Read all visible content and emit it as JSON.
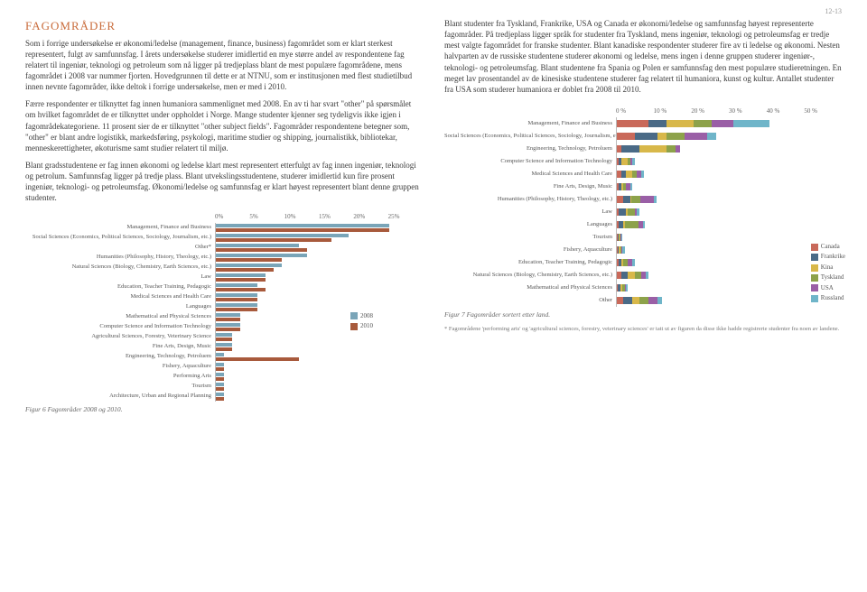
{
  "page_number": "12-13",
  "heading": "FAGOMRÅDER",
  "left_paragraphs": [
    "Som i forrige undersøkelse er økonomi/ledelse (management, finance, business) fagområdet som er klart sterkest representert, fulgt av samfunnsfag. I årets undersøkelse studerer imidlertid en mye større andel av respondentene fag relatert til ingeniør, teknologi og petroleum som nå ligger på tredjeplass blant de mest populære fagområdene, mens fagområdet i 2008 var nummer fjorten. Hovedgrunnen til dette er at NTNU, som er institusjonen med flest studietilbud innen nevnte fagområder, ikke deltok i forrige undersøkelse, men er med i 2010.",
    "Færre respondenter er tilknyttet fag innen humaniora sammenlignet med 2008. En av ti har svart \"other\" på spørsmålet om hvilket fagområdet de er tilknyttet under oppholdet i Norge. Mange studenter kjenner seg tydeligvis ikke igjen i fagområdekategoriene. 11 prosent sier de er tilknyttet \"other subject fields\". Fagområder respondentene betegner som, \"other\" er blant andre logistikk, markedsføring, psykologi, maritime studier og shipping, journalistikk, bibliotekar, menneskerettigheter, økoturisme samt studier relatert til miljø.",
    "Blant gradsstudentene er fag innen økonomi og ledelse klart mest representert etterfulgt av fag innen ingeniør, teknologi og petrolum. Samfunnsfag ligger på tredje plass. Blant utvekslingsstudentene, studerer imidlertid kun fire prosent ingeniør, teknologi- og petroleumsfag. Økonomi/ledelse og samfunnsfag er klart høyest representert blant denne gruppen studenter."
  ],
  "right_paragraphs": [
    "Blant studenter fra Tyskland, Frankrike, USA og Canada er økonomi/ledelse og samfunnsfag høyest representerte fagområder. På tredjeplass ligger språk for studenter fra Tyskland, mens ingeniør, teknologi og petroleumsfag er tredje mest valgte fagområdet for franske studenter. Blant kanadiske respondenter studerer fire av ti ledelse og økonomi. Nesten halvparten av de russiske studentene studerer økonomi og ledelse, mens ingen i denne gruppen studerer ingeniør-, teknologi- og petroleumsfag. Blant studentene fra Spania og Polen er samfunnsfag den mest populære studieretningen. En meget lav prosentandel av de kinesiske studentene studerer fag relatert til humaniora, kunst og kultur. Antallet studenter fra USA som studerer humaniora er doblet fra 2008 til 2010."
  ],
  "chart1": {
    "type": "bar",
    "axis_ticks": [
      "0%",
      "5%",
      "10%",
      "15%",
      "20%",
      "25%"
    ],
    "xmax": 25,
    "colors": {
      "y2008": "#7aa5b8",
      "y2010": "#a85a3c"
    },
    "legend": [
      {
        "label": "2008",
        "color": "#7aa5b8"
      },
      {
        "label": "2010",
        "color": "#a85a3c"
      }
    ],
    "rows": [
      {
        "label": "Management, Finance and Business",
        "y2008": 21,
        "y2010": 21
      },
      {
        "label": "Social Sciences (Economics, Political Sciences, Sociology, Journalism, etc.)",
        "y2008": 16,
        "y2010": 14
      },
      {
        "label": "Other*",
        "y2008": 10,
        "y2010": 11
      },
      {
        "label": "Humanities (Philosophy, History, Theology, etc.)",
        "y2008": 11,
        "y2010": 8
      },
      {
        "label": "Natural Sciences (Biology, Chemistry, Earth Sciences, etc.)",
        "y2008": 8,
        "y2010": 7
      },
      {
        "label": "Law",
        "y2008": 6,
        "y2010": 6
      },
      {
        "label": "Education, Teacher Training, Pedagogic",
        "y2008": 5,
        "y2010": 6
      },
      {
        "label": "Medical Sciences and Health Care",
        "y2008": 5,
        "y2010": 5
      },
      {
        "label": "Languages",
        "y2008": 5,
        "y2010": 5
      },
      {
        "label": "Mathematical and Physical Sciences",
        "y2008": 3,
        "y2010": 3
      },
      {
        "label": "Computer Science and Information Technology",
        "y2008": 3,
        "y2010": 3
      },
      {
        "label": "Agricultural Sciences, Forestry, Veterinary Science",
        "y2008": 2,
        "y2010": 2
      },
      {
        "label": "Fine Arts, Design, Music",
        "y2008": 2,
        "y2010": 2
      },
      {
        "label": "Engineering, Technology, Petroluem",
        "y2008": 1,
        "y2010": 10
      },
      {
        "label": "Fishery, Aquaculture",
        "y2008": 1,
        "y2010": 1
      },
      {
        "label": "Performing Arts",
        "y2008": 1,
        "y2010": 1
      },
      {
        "label": "Tourism",
        "y2008": 1,
        "y2010": 1
      },
      {
        "label": "Architecture, Urban and Regional Planning",
        "y2008": 1,
        "y2010": 1
      }
    ],
    "caption": "Figur 6 Fagområder 2008 og 2010."
  },
  "chart2": {
    "type": "stacked-bar",
    "axis_ticks": [
      "0 %",
      "10 %",
      "20 %",
      "30 %",
      "40 %",
      "50 %"
    ],
    "xmax": 50,
    "countries": [
      {
        "name": "Canada",
        "color": "#c9695a"
      },
      {
        "name": "Frankrike",
        "color": "#4a6a86"
      },
      {
        "name": "Kina",
        "color": "#d8b84a"
      },
      {
        "name": "Tyskland",
        "color": "#8da24a"
      },
      {
        "name": "USA",
        "color": "#9a5fa6"
      },
      {
        "name": "Russland",
        "color": "#6fb5c9"
      }
    ],
    "rows": [
      {
        "label": "Management, Finance and Business",
        "segs": [
          7,
          4,
          6,
          4,
          5,
          8
        ]
      },
      {
        "label": "Social Sciences (Economics, Political Sciences, Sociology, Journalism, etc.)",
        "segs": [
          4,
          5,
          2,
          4,
          5,
          2
        ]
      },
      {
        "label": "Engineering, Technology, Petroluem",
        "segs": [
          1,
          4,
          6,
          2,
          1,
          0
        ]
      },
      {
        "label": "Computer Science and Information Technology",
        "segs": [
          0.5,
          0.5,
          1.5,
          0.5,
          0.5,
          0.5
        ]
      },
      {
        "label": "Medical Sciences and Health Care",
        "segs": [
          1,
          1,
          1.5,
          1,
          1,
          0.5
        ]
      },
      {
        "label": "Fine Arts, Design, Music",
        "segs": [
          0.5,
          0.5,
          0.5,
          0.5,
          1,
          0.5
        ]
      },
      {
        "label": "Humanities (Philosophy, History, Theology, etc.)",
        "segs": [
          1.5,
          1.5,
          0.3,
          2,
          3,
          0.5
        ]
      },
      {
        "label": "Law",
        "segs": [
          0.5,
          1.5,
          0.5,
          1.5,
          0.5,
          0.5
        ]
      },
      {
        "label": "Languages",
        "segs": [
          0.5,
          1,
          0.3,
          3,
          1,
          0.5
        ]
      },
      {
        "label": "Tourism",
        "segs": [
          0.2,
          0.2,
          0.2,
          0.2,
          0.2,
          0.2
        ]
      },
      {
        "label": "Fishery, Aquaculture",
        "segs": [
          0.2,
          0.2,
          0.5,
          0.2,
          0.2,
          0.5
        ]
      },
      {
        "label": "Education, Teacher Training, Pedagogic",
        "segs": [
          0.5,
          0.5,
          0.5,
          1,
          1,
          0.5
        ]
      },
      {
        "label": "Natural Sciences (Biology, Chemistry, Earth Sciences, etc.)",
        "segs": [
          1,
          1.5,
          1.5,
          1.5,
          1,
          0.5
        ]
      },
      {
        "label": "Mathematical and Physical Sciences",
        "segs": [
          0.3,
          0.5,
          0.5,
          0.5,
          0.3,
          0.3
        ]
      },
      {
        "label": "Other",
        "segs": [
          1.5,
          2,
          1.5,
          2,
          2,
          1
        ]
      }
    ],
    "caption": "Figur 7 Fagområder sortert etter land.",
    "footnote": "* Fagområdene 'performing arts' og 'agricultural sciences, forestry, veterinary sciences' er tatt ut av figuren da disse ikke hadde registrerte studenter fra noen av landene."
  }
}
